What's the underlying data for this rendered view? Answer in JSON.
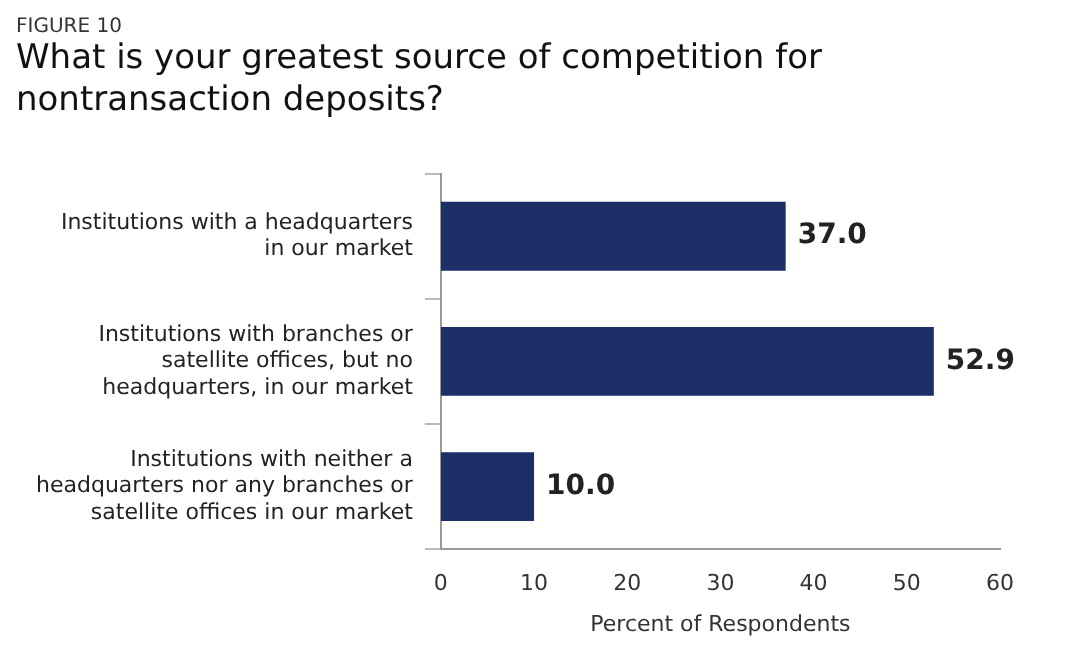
{
  "chart_data": {
    "type": "bar",
    "orientation": "horizontal",
    "annotations": [
      "FIGURE 10"
    ],
    "title": "What is your greatest source of competition for nontransaction deposits?",
    "categories": [
      "Institutions with a headquarters in our market",
      "Institutions with branches or satellite offices, but no headquarters, in our market",
      "Institutions with neither a headquarters nor any branches or satellite offices in our market"
    ],
    "values": [
      37.0,
      52.9,
      10.0
    ],
    "color": "#1c2f66",
    "data_labels": true,
    "value_labels": [
      "37.0",
      "52.9",
      "10.0"
    ],
    "xlim": [
      0,
      60
    ],
    "xticks": [
      0,
      10,
      20,
      30,
      40,
      50,
      60
    ],
    "xlabel": "Percent of Respondents",
    "grid": false,
    "legend": false
  }
}
